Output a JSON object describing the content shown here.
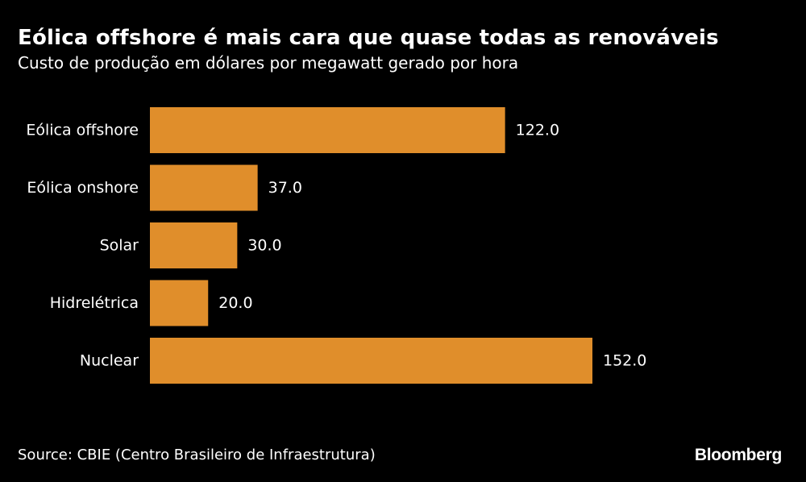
{
  "chart_data": {
    "type": "bar",
    "orientation": "horizontal",
    "title": "Eólica offshore é mais cara que quase todas as renováveis",
    "subtitle": "Custo de produção em dólares por megawatt gerado por hora",
    "categories": [
      "Eólica offshore",
      "Eólica onshore",
      "Solar",
      "Hidrelétrica",
      "Nuclear"
    ],
    "values": [
      122.0,
      37.0,
      30.0,
      20.0,
      152.0
    ],
    "value_labels": [
      "122.0",
      "37.0",
      "30.0",
      "20.0",
      "152.0"
    ],
    "xlim": [
      0,
      152
    ],
    "xlabel": "",
    "ylabel": "",
    "grid": false,
    "bar_color": "#E08E2B",
    "background": "#000000"
  },
  "footer": {
    "source": "Source: CBIE (Centro Brasileiro de Infraestrutura)",
    "brand": "Bloomberg"
  }
}
